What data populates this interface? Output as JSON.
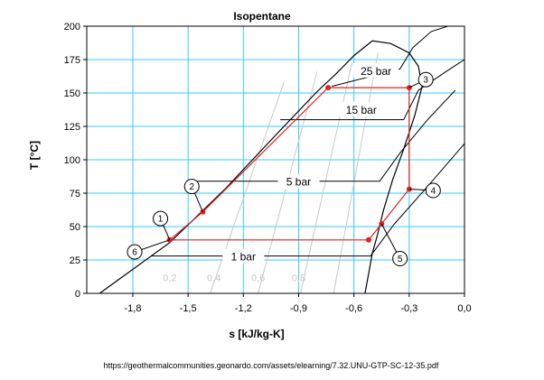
{
  "chart_data": {
    "type": "line",
    "title": "Isopentane",
    "xlabel": "s [kJ/kg-K]",
    "ylabel": "T [°C]",
    "xlim": [
      -2.05,
      0.0
    ],
    "ylim": [
      0,
      200
    ],
    "x_ticks": [
      -1.8,
      -1.5,
      -1.2,
      -0.9,
      -0.6,
      -0.3,
      0.0
    ],
    "x_tick_labels": [
      "-1,8",
      "-1,5",
      "-1,2",
      "-0,9",
      "-0,6",
      "-0,3",
      "0,0"
    ],
    "y_ticks": [
      0,
      25,
      50,
      75,
      100,
      125,
      150,
      175,
      200
    ],
    "y_tick_labels": [
      "0",
      "25",
      "50",
      "75",
      "100",
      "125",
      "150",
      "175",
      "200"
    ],
    "grid": true,
    "grid_color": "#33ccff",
    "cycle_color": "#e02020",
    "saturation_dome": {
      "x": [
        -1.98,
        -1.6,
        -1.3,
        -1.0,
        -0.8,
        -0.7,
        -0.6,
        -0.5,
        -0.4,
        -0.3,
        -0.25,
        -0.23,
        -0.27,
        -0.33,
        -0.39,
        -0.44,
        -0.47,
        -0.5,
        -0.52,
        -0.54
      ],
      "y": [
        0,
        38,
        78,
        122,
        151,
        164,
        178,
        189,
        187,
        180,
        170,
        155,
        133,
        108,
        85,
        62,
        45,
        30,
        15,
        0
      ]
    },
    "isobars": [
      {
        "label": "1 bar",
        "x": [
          -1.7,
          -0.54,
          -0.51,
          -0.38,
          -0.2,
          0.0
        ],
        "y": [
          28,
          28,
          28,
          52,
          80,
          112
        ]
      },
      {
        "label": "5 bar",
        "x": [
          -1.45,
          -0.49,
          -0.46,
          -0.35,
          -0.2,
          -0.05
        ],
        "y": [
          84,
          84,
          84,
          105,
          130,
          152
        ]
      },
      {
        "label": "15 bar",
        "x": [
          -1.0,
          -0.36,
          -0.33,
          -0.25,
          -0.1,
          0.0
        ],
        "y": [
          130,
          130,
          130,
          152,
          166,
          175
        ]
      },
      {
        "label": "25 bar",
        "x": [
          -0.72,
          -0.35,
          -0.28,
          -0.18,
          0.0
        ],
        "y": [
          155,
          168,
          184,
          196,
          204
        ]
      }
    ],
    "quality_lines": [
      {
        "label": "0,2",
        "x": [
          -1.38,
          -0.98
        ],
        "y": [
          0,
          158
        ]
      },
      {
        "label": "0,4",
        "x": [
          -1.12,
          -0.8
        ],
        "y": [
          0,
          166
        ]
      },
      {
        "label": "0,6",
        "x": [
          -0.89,
          -0.61
        ],
        "y": [
          0,
          173
        ]
      },
      {
        "label": "0,8",
        "x": [
          -0.71,
          -0.47
        ],
        "y": [
          0,
          180
        ]
      }
    ],
    "cycle": {
      "x": [
        -1.6,
        -1.42,
        -0.74,
        -0.3,
        -0.3,
        -0.45,
        -0.52,
        -1.6
      ],
      "y": [
        40,
        61,
        154,
        154,
        78,
        52,
        40,
        40
      ]
    },
    "points": [
      {
        "label": "1",
        "x": -1.6,
        "y": 40
      },
      {
        "label": "2",
        "x": -1.42,
        "y": 61
      },
      {
        "label": "3",
        "x": -0.3,
        "y": 154
      },
      {
        "label": "4",
        "x": -0.3,
        "y": 78
      },
      {
        "label": "5",
        "x": -0.45,
        "y": 52
      },
      {
        "label": "6",
        "x": -1.6,
        "y": 40
      }
    ],
    "extra_cycle_points": [
      {
        "x": -0.74,
        "y": 154
      },
      {
        "x": -0.52,
        "y": 40
      }
    ]
  },
  "source_url": "https://geothermalcommunities.geonardo.com/assets/elearning/7.32.UNU-GTP-SC-12-35.pdf"
}
